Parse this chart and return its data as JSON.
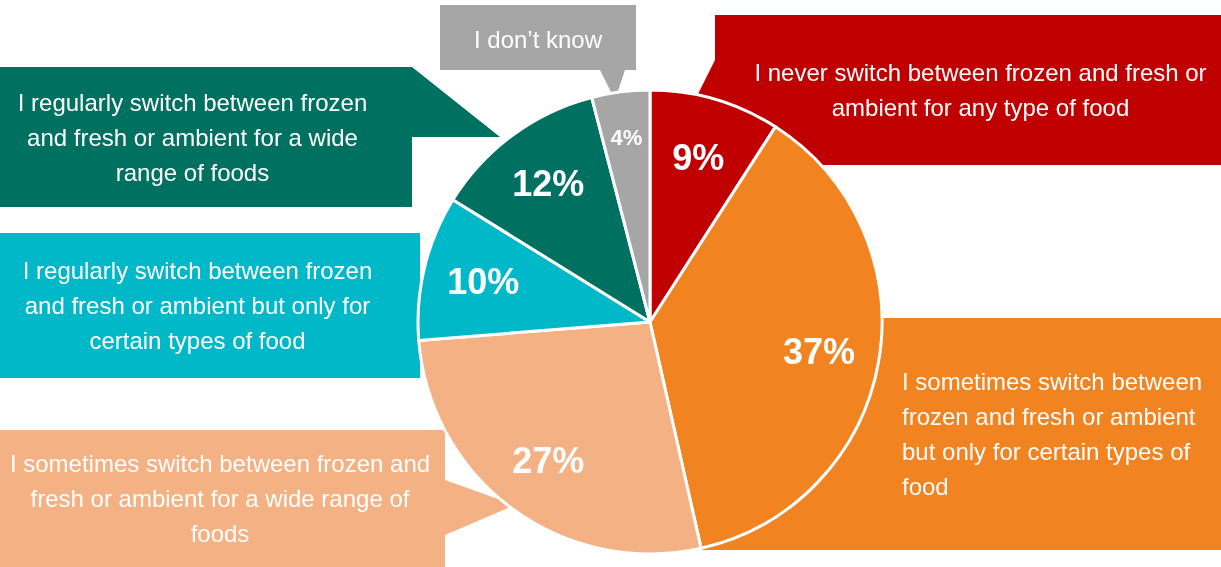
{
  "chart_data": {
    "type": "pie",
    "categories": [
      "I never switch between frozen and fresh or ambient for any type of food",
      "I sometimes switch between frozen and fresh or ambient but only for certain types of food",
      "I sometimes switch between frozen and fresh or ambient for a wide range of foods",
      "I regularly switch between frozen and fresh or ambient but only for certain types of food",
      "I regularly switch between frozen and fresh or ambient for a wide range of foods",
      "I don’t know"
    ],
    "values": [
      9,
      37,
      27,
      10,
      12,
      4
    ],
    "value_labels": [
      "9%",
      "37%",
      "27%",
      "10%",
      "12%",
      "4%"
    ],
    "colors": [
      "#c00000",
      "#f28321",
      "#f4b183",
      "#00b8c8",
      "#007060",
      "#a6a6a6"
    ],
    "legend": false
  }
}
